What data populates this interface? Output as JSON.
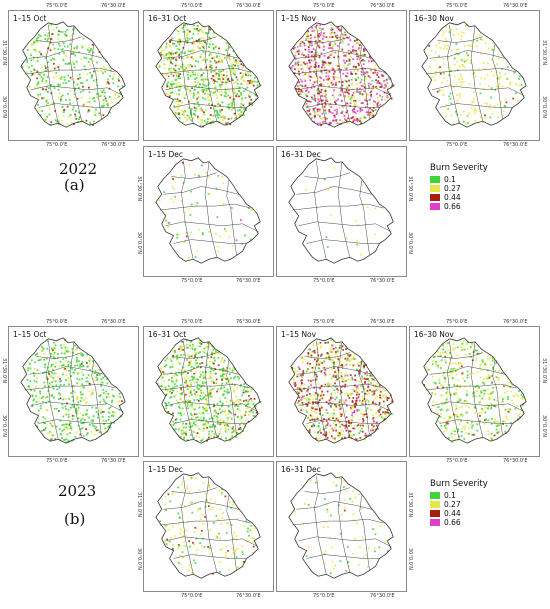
{
  "ticks": {
    "lon_left": "75°0.0'E",
    "lon_right": "76°30.0'E",
    "lat_top": "31°30.0'N",
    "lat_bottom": "30°0.0'N"
  },
  "legend": {
    "title": "Burn Severity",
    "items": [
      {
        "value": "0.1",
        "color": "#3fd43a"
      },
      {
        "value": "0.27",
        "color": "#e6e64a"
      },
      {
        "value": "0.44",
        "color": "#a81e0e"
      },
      {
        "value": "0.66",
        "color": "#e040c8"
      }
    ]
  },
  "groups": [
    {
      "year": "2022",
      "figure_label": "(a)",
      "panels": [
        {
          "period": "1–15 Oct",
          "density": 0.45,
          "mix": [
            0.55,
            0.3,
            0.15,
            0.0
          ]
        },
        {
          "period": "16–31 Oct",
          "density": 0.85,
          "mix": [
            0.45,
            0.4,
            0.15,
            0.0
          ]
        },
        {
          "period": "1–15 Nov",
          "density": 0.9,
          "mix": [
            0.1,
            0.25,
            0.3,
            0.35
          ]
        },
        {
          "period": "16–30 Nov",
          "density": 0.25,
          "mix": [
            0.2,
            0.75,
            0.05,
            0.0
          ]
        },
        {
          "period": "1–15 Dec",
          "density": 0.08,
          "mix": [
            0.3,
            0.6,
            0.05,
            0.05
          ]
        },
        {
          "period": "16–31 Dec",
          "density": 0.02,
          "mix": [
            0.3,
            0.7,
            0.0,
            0.0
          ]
        }
      ]
    },
    {
      "year": "2023",
      "figure_label": "(b)",
      "panels": [
        {
          "period": "1–15 Oct",
          "density": 0.55,
          "mix": [
            0.7,
            0.25,
            0.05,
            0.0
          ]
        },
        {
          "period": "16–31 Oct",
          "density": 0.8,
          "mix": [
            0.55,
            0.35,
            0.1,
            0.0
          ]
        },
        {
          "period": "1–15 Nov",
          "density": 0.85,
          "mix": [
            0.15,
            0.35,
            0.4,
            0.1
          ]
        },
        {
          "period": "16–30 Nov",
          "density": 0.5,
          "mix": [
            0.4,
            0.55,
            0.05,
            0.0
          ]
        },
        {
          "period": "1–15 Dec",
          "density": 0.2,
          "mix": [
            0.3,
            0.65,
            0.05,
            0.0
          ]
        },
        {
          "period": "16–31 Dec",
          "density": 0.06,
          "mix": [
            0.3,
            0.65,
            0.05,
            0.0
          ]
        }
      ]
    }
  ]
}
